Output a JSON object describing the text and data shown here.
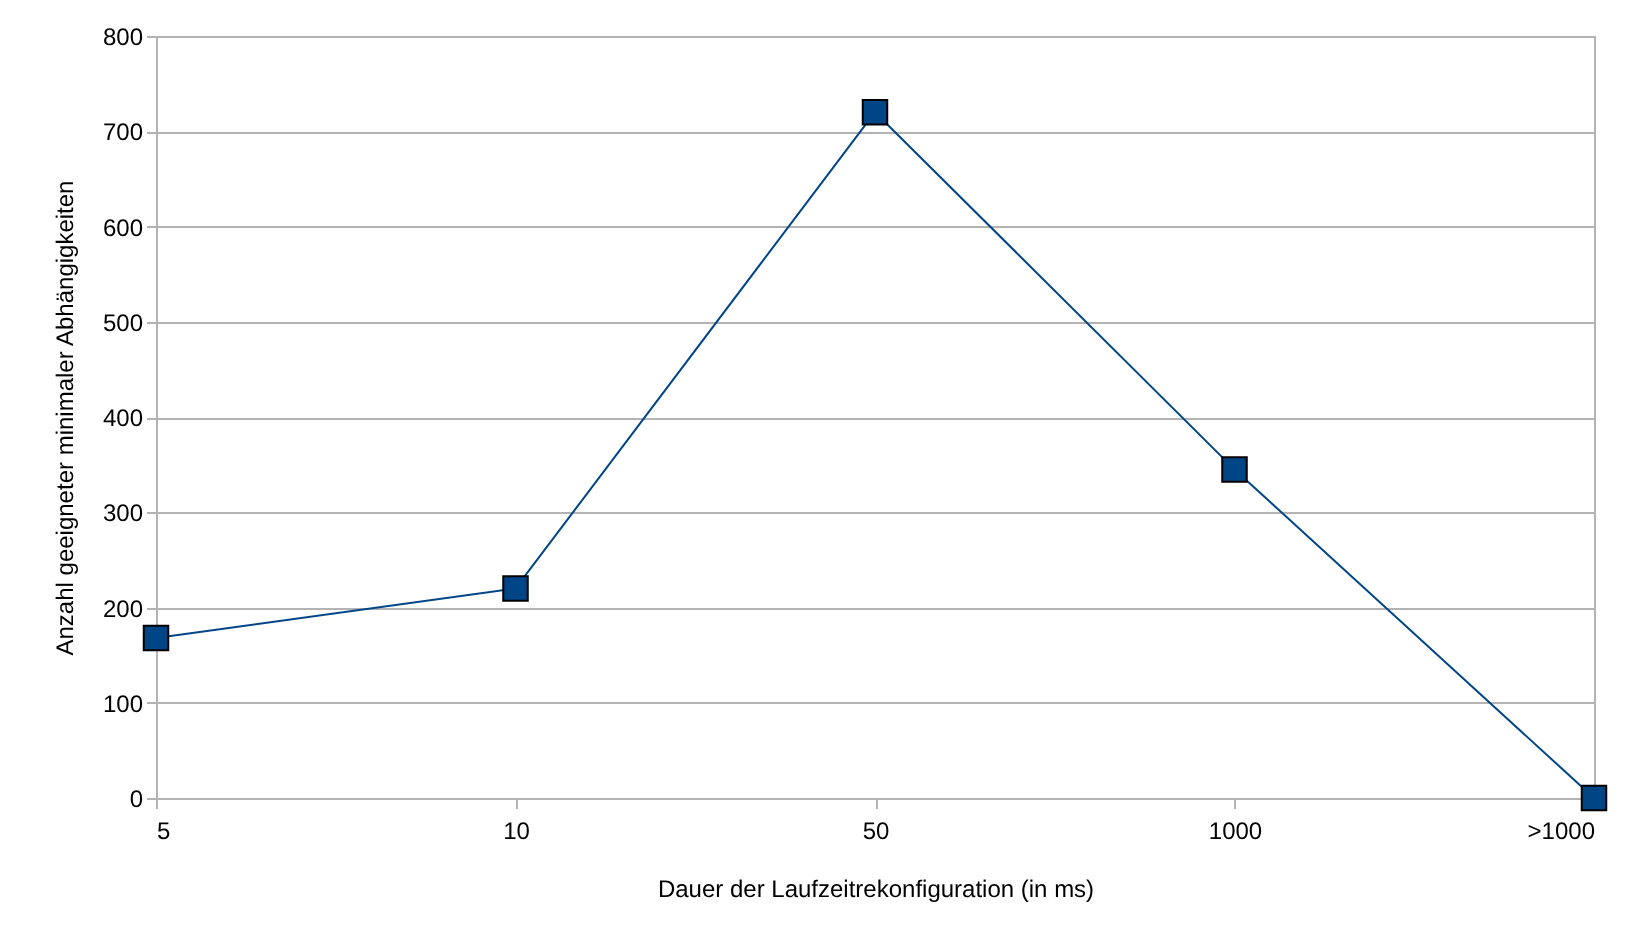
{
  "chart_data": {
    "type": "line",
    "xlabel": "Dauer der Laufzeitrekonfiguration (in ms)",
    "ylabel": "Anzahl geeigneter minimaler Abhängigkeiten",
    "categories": [
      "5",
      "10",
      "50",
      "1000",
      ">1000"
    ],
    "series": [
      {
        "color": "#004586",
        "values": [
          168,
          220,
          720,
          345,
          0
        ]
      }
    ],
    "ylim": [
      0,
      800
    ],
    "yticks": [
      0,
      100,
      200,
      300,
      400,
      500,
      600,
      700,
      800
    ],
    "grid": "y",
    "marker": "square",
    "line_style": "solid"
  }
}
